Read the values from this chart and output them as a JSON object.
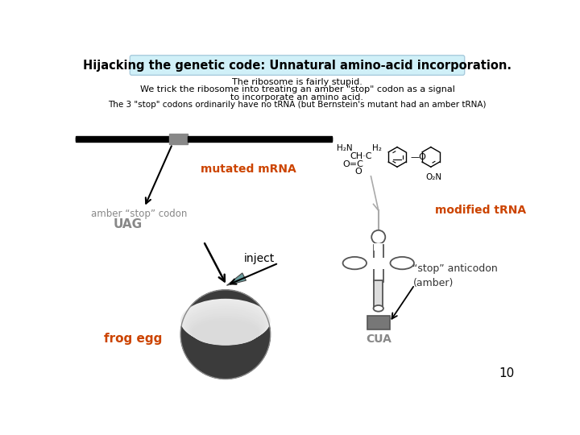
{
  "title": "Hijacking the genetic code: Unnatural amino-acid incorporation.",
  "title_bg": "#d0f0f8",
  "subtitle_lines": [
    "The ribosome is fairly stupid.",
    "We trick the ribosome into treating an amber \"stop\" codon as a signal",
    "to incorporate an amino acid.",
    "The 3 \"stop\" codons ordinarily have no tRNA (but Bernstein's mutant had an amber tRNA)"
  ],
  "label_mutated_mrna": "mutated mRNA",
  "label_amber": "amber “stop” codon",
  "label_uag": "UAG",
  "label_inject": "inject",
  "label_frog_egg": "frog egg",
  "label_modified_trna": "modified tRNA",
  "label_stop_anticodon": "“stop” anticodon\n(amber)",
  "label_cua": "CUA",
  "page_number": "10",
  "orange_color": "#cc4400",
  "gray_color": "#888888",
  "dark_color": "#333333",
  "bg_color": "#ffffff"
}
